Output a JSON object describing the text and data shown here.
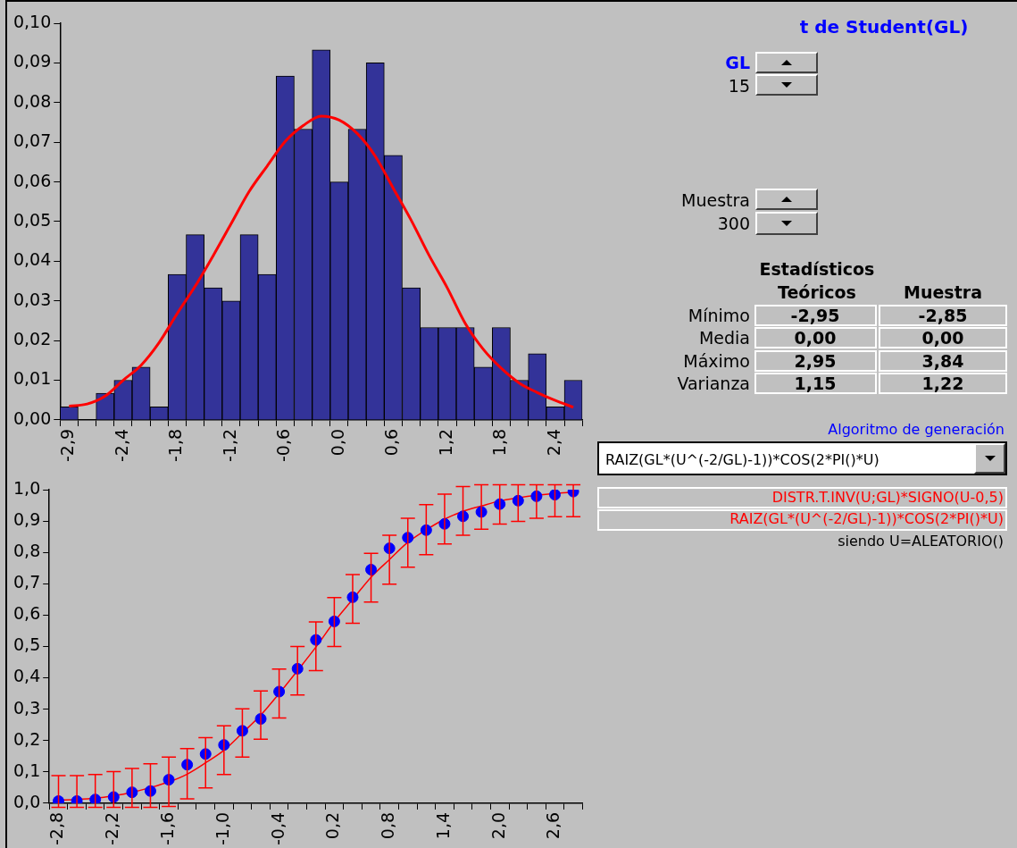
{
  "chart_data": [
    {
      "type": "bar",
      "categories": [
        "-2,9",
        null,
        null,
        "-2,4",
        null,
        null,
        "-1,8",
        null,
        null,
        "-1,2",
        null,
        null,
        "-0,6",
        null,
        null,
        "0,0",
        null,
        null,
        "0,6",
        null,
        null,
        "1,2",
        null,
        null,
        "1,8",
        null,
        null,
        "2,4",
        null
      ],
      "series": [
        {
          "type": "bar",
          "color": "#333399",
          "values": [
            0.0033,
            0,
            0.0067,
            0.01,
            0.0133,
            0.0033,
            0.0367,
            0.0467,
            0.0333,
            0.03,
            0.0467,
            0.0367,
            0.0867,
            0.0733,
            0.0933,
            0.06,
            0.0733,
            0.09,
            0.0667,
            0.0333,
            0.0233,
            0.0233,
            0.0233,
            0.0133,
            0.0233,
            0.01,
            0.0167,
            0.0033,
            0.01
          ]
        },
        {
          "type": "line",
          "color": "#ff0000",
          "values": [
            0.0035,
            0.004,
            0.006,
            0.01,
            0.0138,
            0.0195,
            0.0268,
            0.0337,
            0.0414,
            0.0495,
            0.0576,
            0.064,
            0.0702,
            0.0742,
            0.0766,
            0.0756,
            0.0722,
            0.0665,
            0.0584,
            0.0503,
            0.0414,
            0.0333,
            0.0243,
            0.0178,
            0.013,
            0.0093,
            0.0069,
            0.0049,
            0.0032
          ]
        }
      ],
      "ylim": [
        0,
        0.1
      ],
      "yticks": [
        {
          "value": 0,
          "label": "0,00"
        },
        {
          "value": 0.01,
          "label": "0,01"
        },
        {
          "value": 0.02,
          "label": "0,02"
        },
        {
          "value": 0.03,
          "label": "0,03"
        },
        {
          "value": 0.04,
          "label": "0,04"
        },
        {
          "value": 0.05,
          "label": "0,05"
        },
        {
          "value": 0.06,
          "label": "0,06"
        },
        {
          "value": 0.07,
          "label": "0,07"
        },
        {
          "value": 0.08,
          "label": "0,08"
        },
        {
          "value": 0.09,
          "label": "0,09"
        },
        {
          "value": 0.1,
          "label": "0,10"
        }
      ],
      "grid": false,
      "legend": false
    },
    {
      "type": "line",
      "categories": [
        "-2,8",
        null,
        null,
        "-2,2",
        null,
        null,
        "-1,6",
        null,
        null,
        "-1,0",
        null,
        null,
        "-0,4",
        null,
        null,
        "0,2",
        null,
        null,
        "0,8",
        null,
        null,
        "1,4",
        null,
        null,
        "2,0",
        null,
        null,
        "2,6",
        null
      ],
      "series": [
        {
          "type": "line",
          "color": "#ff0000",
          "marker": "none",
          "values": [
            0.01,
            0.012,
            0.016,
            0.024,
            0.035,
            0.05,
            0.068,
            0.093,
            0.129,
            0.169,
            0.224,
            0.281,
            0.35,
            0.423,
            0.498,
            0.579,
            0.65,
            0.721,
            0.777,
            0.832,
            0.872,
            0.906,
            0.931,
            0.948,
            0.964,
            0.974,
            0.982,
            0.988,
            0.992
          ]
        },
        {
          "type": "scatter",
          "color": "#0000ff",
          "marker": "circle",
          "values": [
            0.007,
            0.007,
            0.012,
            0.02,
            0.035,
            0.039,
            0.075,
            0.123,
            0.157,
            0.186,
            0.231,
            0.269,
            0.356,
            0.429,
            0.521,
            0.58,
            0.657,
            0.745,
            0.813,
            0.847,
            0.871,
            0.891,
            0.915,
            0.929,
            0.954,
            0.965,
            0.979,
            0.984,
            0.994
          ],
          "errors": [
            [
              -0.013,
              0.088
            ],
            [
              -0.013,
              0.088
            ],
            [
              -0.013,
              0.092
            ],
            [
              -0.013,
              0.101
            ],
            [
              -0.013,
              0.111
            ],
            [
              -0.013,
              0.126
            ],
            [
              -0.01,
              0.147
            ],
            [
              0.014,
              0.174
            ],
            [
              0.049,
              0.209
            ],
            [
              0.092,
              0.247
            ],
            [
              0.147,
              0.301
            ],
            [
              0.204,
              0.358
            ],
            [
              0.272,
              0.428
            ],
            [
              0.345,
              0.5
            ],
            [
              0.423,
              0.578
            ],
            [
              0.5,
              0.656
            ],
            [
              0.574,
              0.729
            ],
            [
              0.642,
              0.797
            ],
            [
              0.699,
              0.855
            ],
            [
              0.753,
              0.909
            ],
            [
              0.793,
              0.952
            ],
            [
              0.827,
              0.986
            ],
            [
              0.855,
              1.01
            ],
            [
              0.874,
              1.016
            ],
            [
              0.89,
              1.016
            ],
            [
              0.899,
              1.016
            ],
            [
              0.909,
              1.016
            ],
            [
              0.914,
              1.016
            ],
            [
              0.914,
              1.016
            ]
          ]
        }
      ],
      "ylim": [
        0,
        1
      ],
      "yticks": [
        {
          "value": 0,
          "label": "0,0"
        },
        {
          "value": 0.1,
          "label": "0,1"
        },
        {
          "value": 0.2,
          "label": "0,2"
        },
        {
          "value": 0.3,
          "label": "0,3"
        },
        {
          "value": 0.4,
          "label": "0,4"
        },
        {
          "value": 0.5,
          "label": "0,5"
        },
        {
          "value": 0.6,
          "label": "0,6"
        },
        {
          "value": 0.7,
          "label": "0,7"
        },
        {
          "value": 0.8,
          "label": "0,8"
        },
        {
          "value": 0.9,
          "label": "0,9"
        },
        {
          "value": 1,
          "label": "1,0"
        }
      ],
      "grid": false,
      "legend": false
    },
    {
      "type": "other",
      "title": "t de Student(GL)",
      "annotations": [
        "GL",
        "15",
        "Muestra",
        "300",
        "Estadísticos",
        "Teóricos",
        "Muestra",
        "Mínimo",
        "-2,95",
        "-2,85",
        "Media",
        "0,00",
        "0,00",
        "Máximo",
        "2,95",
        "3,84",
        "Varianza",
        "1,15",
        "1,22",
        "Algoritmo de generación",
        "RAIZ(GL*(U^(-2/GL)-1))*COS(2*PI()*U)",
        "DISTR.T.INV(U;GL)*SIGNO(U-0,5)",
        "RAIZ(GL*(U^(-2/GL)-1))*COS(2*PI()*U)",
        "siendo U=ALEATORIO()"
      ]
    }
  ]
}
